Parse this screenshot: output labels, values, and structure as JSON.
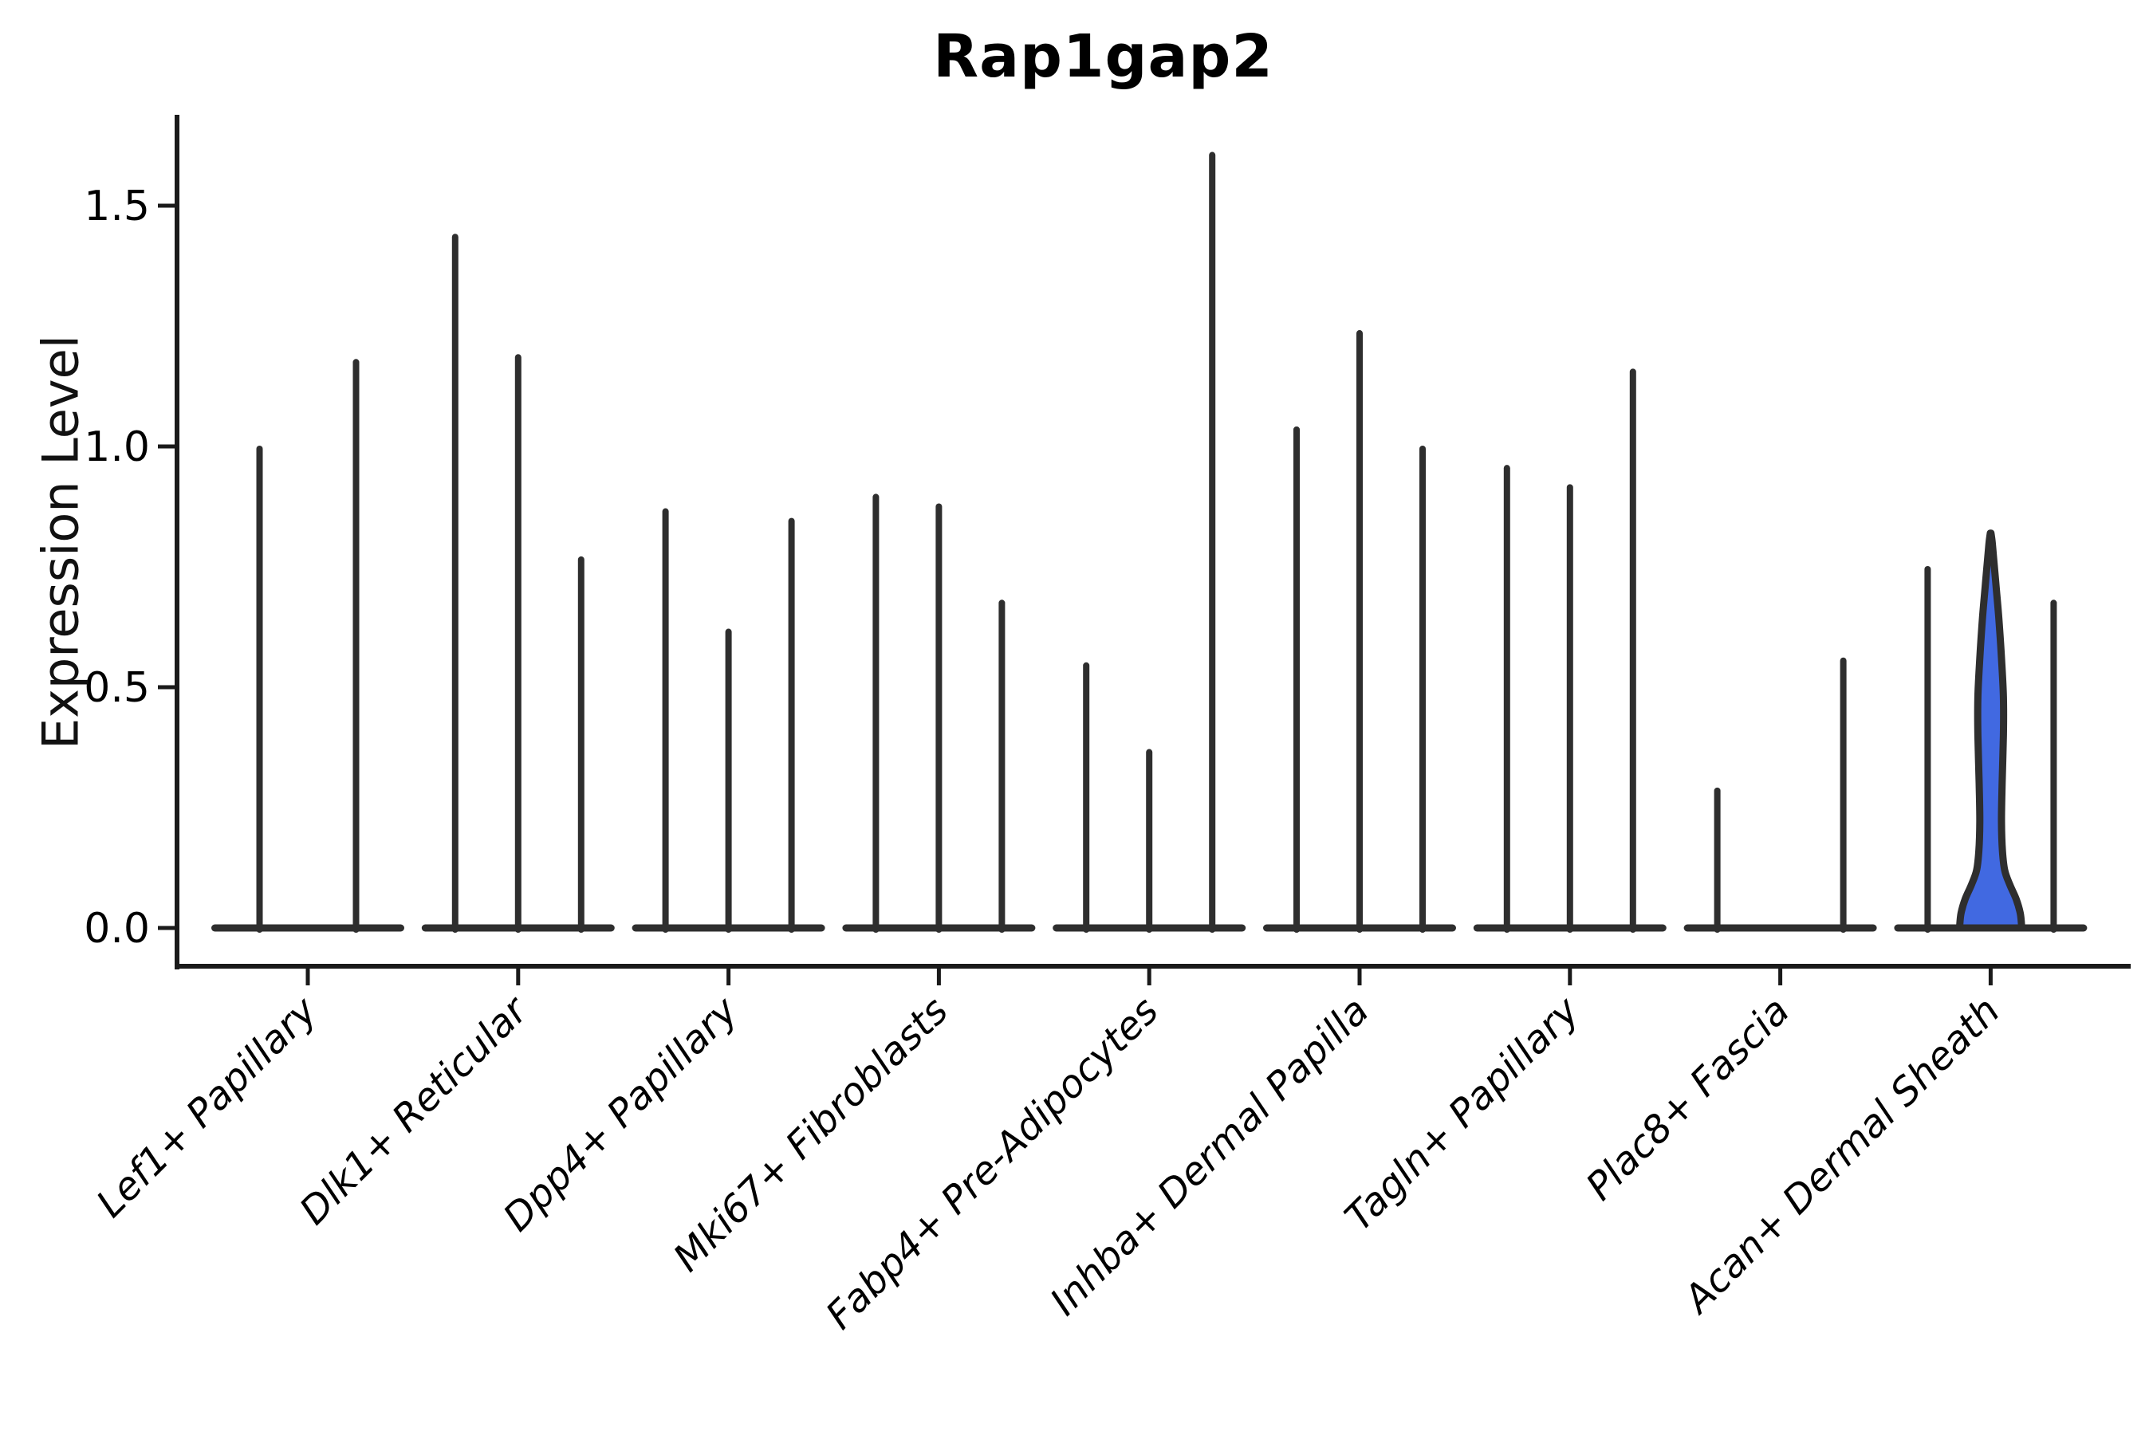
{
  "title": "Rap1gap2",
  "y_axis": {
    "label": "Expression Level",
    "tick_labels": [
      "0.0",
      "0.5",
      "1.0",
      "1.5"
    ]
  },
  "chart_data": {
    "type": "violin",
    "title": "Rap1gap2",
    "xlabel": "",
    "ylabel": "Expression Level",
    "ylim": [
      -0.08,
      1.69
    ],
    "yticks": [
      0,
      0.5,
      1,
      1.5
    ],
    "ytick_labels": [
      "0.0",
      "0.5",
      "1.0",
      "1.5"
    ],
    "grid": false,
    "legend": false,
    "categories": [
      "Lef1+ Papillary",
      "Dlk1+ Reticular",
      "Dpp4+ Papillary",
      "Mki67+ Fibroblasts",
      "Fabp4+ Pre-Adipocytes",
      "Inhba+ Dermal Papilla",
      "Tagln+ Papillary",
      "Plac8+ Fascia",
      "Acan+ Dermal Sheath"
    ],
    "groups": [
      {
        "category": "Lef1+ Papillary",
        "violins": [
          {
            "peak": 1.0
          },
          {
            "peak": 1.18
          }
        ]
      },
      {
        "category": "Dlk1+ Reticular",
        "violins": [
          {
            "peak": 1.44
          },
          {
            "peak": 1.19
          },
          {
            "peak": 0.77
          }
        ]
      },
      {
        "category": "Dpp4+ Papillary",
        "violins": [
          {
            "peak": 0.87
          },
          {
            "peak": 0.62
          },
          {
            "peak": 0.85
          }
        ]
      },
      {
        "category": "Mki67+ Fibroblasts",
        "violins": [
          {
            "peak": 0.9
          },
          {
            "peak": 0.88
          },
          {
            "peak": 0.68
          }
        ]
      },
      {
        "category": "Fabp4+ Pre-Adipocytes",
        "violins": [
          {
            "peak": 0.55
          },
          {
            "peak": 0.37
          },
          {
            "peak": 1.61
          }
        ]
      },
      {
        "category": "Inhba+ Dermal Papilla",
        "violins": [
          {
            "peak": 1.04
          },
          {
            "peak": 1.24
          },
          {
            "peak": 1.0
          }
        ]
      },
      {
        "category": "Tagln+ Papillary",
        "violins": [
          {
            "peak": 0.96
          },
          {
            "peak": 0.92
          },
          {
            "peak": 1.16
          }
        ]
      },
      {
        "category": "Plac8+ Fascia",
        "violins": [
          {
            "peak": 0.29
          },
          {
            "peak": 0.0
          },
          {
            "peak": 0.56
          }
        ]
      },
      {
        "category": "Acan+ Dermal Sheath",
        "violins": [
          {
            "peak": 0.75
          },
          {
            "peak": 0.82,
            "filled": true,
            "profile": [
              [
                0.0,
                0.975
              ],
              [
                0.03,
                0.93
              ],
              [
                0.06,
                0.8
              ],
              [
                0.09,
                0.6
              ],
              [
                0.12,
                0.44
              ],
              [
                0.16,
                0.37
              ],
              [
                0.22,
                0.34
              ],
              [
                0.3,
                0.36
              ],
              [
                0.4,
                0.4
              ],
              [
                0.48,
                0.4
              ],
              [
                0.56,
                0.34
              ],
              [
                0.64,
                0.26
              ],
              [
                0.71,
                0.17
              ],
              [
                0.77,
                0.09
              ],
              [
                0.8,
                0.05
              ],
              [
                0.82,
                0.01
              ]
            ]
          },
          {
            "peak": 0.68
          }
        ]
      }
    ],
    "colors": {
      "line": "#2e2e2e",
      "highlight_fill": "#4169e1",
      "axis": "#1a1a1a",
      "text": "#000000"
    }
  }
}
